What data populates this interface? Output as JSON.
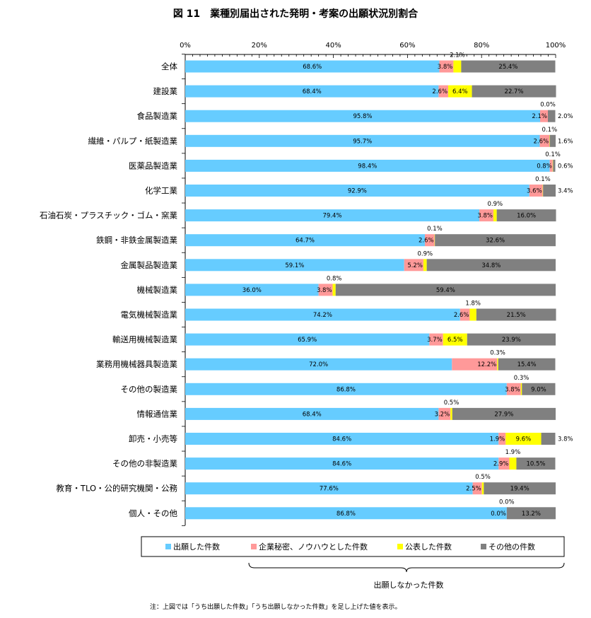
{
  "chart_data": {
    "type": "bar",
    "orientation": "horizontal",
    "stacked": true,
    "percent_stacked": true,
    "title": "図 11　業種別届出された発明・考案の出願状況別割合",
    "xlim": [
      0,
      100
    ],
    "x_ticks": [
      "0%",
      "20%",
      "40%",
      "60%",
      "80%",
      "100%"
    ],
    "grid": false,
    "legend_position": "bottom",
    "categories": [
      "全体",
      "建設業",
      "食品製造業",
      "繊維・パルプ・紙製造業",
      "医薬品製造業",
      "化学工業",
      "石油石炭・プラスチック・ゴム・窯業",
      "鉄鋼・非鉄金属製造業",
      "金属製品製造業",
      "機械製造業",
      "電気機械製造業",
      "輸送用機械製造業",
      "業務用機械器具製造業",
      "その他の製造業",
      "情報通信業",
      "卸売・小売等",
      "その他の非製造業",
      "教育・TLO・公的研究機関・公務",
      "個人・その他"
    ],
    "series": [
      {
        "name": "出願した件数",
        "color": "#66CCFF",
        "values": [
          68.6,
          68.4,
          95.8,
          95.7,
          98.4,
          92.9,
          79.4,
          64.7,
          59.1,
          36.0,
          74.2,
          65.9,
          72.0,
          86.8,
          68.4,
          84.6,
          84.6,
          77.6,
          86.8
        ],
        "labels": [
          "68.6%",
          "68.4%",
          "95.8%",
          "95.7%",
          "98.4%",
          "92.9%",
          "79.4%",
          "64.7%",
          "59.1%",
          "36.0%",
          "74.2%",
          "65.9%",
          "72.0%",
          "86.8%",
          "68.4%",
          "84.6%",
          "84.6%",
          "77.6%",
          "86.8%"
        ]
      },
      {
        "name": "企業秘密、ノウハウとした件数",
        "color": "#FF9999",
        "values": [
          3.8,
          2.6,
          2.1,
          2.6,
          0.8,
          3.6,
          3.8,
          2.6,
          5.2,
          3.8,
          2.6,
          3.7,
          12.2,
          3.8,
          3.2,
          1.9,
          2.9,
          2.5,
          0.0
        ],
        "labels": [
          "3.8%",
          "2.6%",
          "2.1%",
          "2.6%",
          "0.8%",
          "3.6%",
          "3.8%",
          "2.6%",
          "5.2%",
          "3.8%",
          "2.6%",
          "3.7%",
          "12.2%",
          "3.8%",
          "3.2%",
          "1.9%",
          "2.9%",
          "2.5%",
          "0.0%"
        ]
      },
      {
        "name": "公表した件数",
        "color": "#FFFF00",
        "values": [
          2.1,
          6.4,
          0.0,
          0.1,
          0.1,
          0.1,
          0.9,
          0.1,
          0.9,
          0.8,
          1.8,
          6.5,
          0.3,
          0.3,
          0.5,
          9.6,
          1.9,
          0.5,
          0.0
        ],
        "labels": [
          "2.1%",
          "6.4%",
          "0.0%",
          "0.1%",
          "0.1%",
          "0.1%",
          "0.9%",
          "0.1%",
          "0.9%",
          "0.8%",
          "1.8%",
          "6.5%",
          "0.3%",
          "0.3%",
          "0.5%",
          "9.6%",
          "1.9%",
          "0.5%",
          "0.0%"
        ]
      },
      {
        "name": "その他の件数",
        "color": "#808080",
        "values": [
          25.4,
          22.7,
          2.0,
          1.6,
          0.6,
          3.4,
          16.0,
          32.6,
          34.8,
          59.4,
          21.5,
          23.9,
          15.4,
          9.0,
          27.9,
          3.8,
          10.5,
          19.4,
          13.2
        ],
        "labels": [
          "25.4%",
          "22.7%",
          "2.0%",
          "1.6%",
          "0.6%",
          "3.4%",
          "16.0%",
          "32.6%",
          "34.8%",
          "59.4%",
          "21.5%",
          "23.9%",
          "15.4%",
          "9.0%",
          "27.9%",
          "3.8%",
          "10.5%",
          "19.4%",
          "13.2%"
        ]
      }
    ],
    "brace_label": "出願しなかった件数",
    "note": "注：上図では「うち出願した件数」「うち出願しなかった件数」を足し上げた値を表示。"
  }
}
